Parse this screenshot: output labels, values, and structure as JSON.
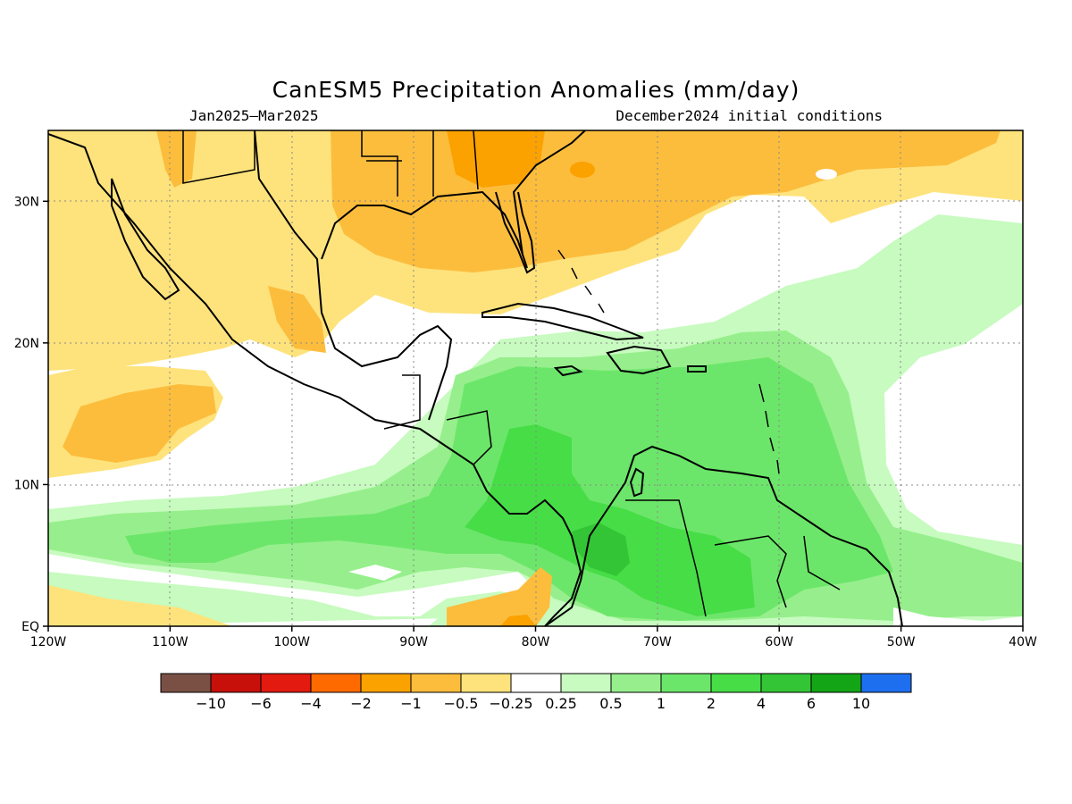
{
  "title": "CanESM5 Precipitation Anomalies (mm/day)",
  "subtitle_left": "Jan2025–Mar2025",
  "subtitle_right": "December2024 initial conditions",
  "map": {
    "lon_range": [
      -120,
      -40
    ],
    "lat_range": [
      0,
      35
    ],
    "x_ticks": [
      {
        "lon": -120,
        "label": "120W"
      },
      {
        "lon": -110,
        "label": "110W"
      },
      {
        "lon": -100,
        "label": "100W"
      },
      {
        "lon": -90,
        "label": "90W"
      },
      {
        "lon": -80,
        "label": "80W"
      },
      {
        "lon": -70,
        "label": "70W"
      },
      {
        "lon": -60,
        "label": "60W"
      },
      {
        "lon": -50,
        "label": "50W"
      },
      {
        "lon": -40,
        "label": "40W"
      }
    ],
    "y_ticks": [
      {
        "lat": 0,
        "label": "EQ"
      },
      {
        "lat": 10,
        "label": "10N"
      },
      {
        "lat": 20,
        "label": "20N"
      },
      {
        "lat": 30,
        "label": "30N"
      }
    ]
  },
  "legend": {
    "colors": [
      "#7a5045",
      "#c8100a",
      "#e21a10",
      "#ff6a00",
      "#fba100",
      "#fcbd3d",
      "#fee37c",
      "#ffffff",
      "#c7fbbf",
      "#96ef8c",
      "#6ce66a",
      "#47dd47",
      "#33c535",
      "#13a516",
      "#1e6ff0"
    ],
    "labels": [
      "−10",
      "−6",
      "−4",
      "−2",
      "−1",
      "−0.5",
      "−0.25",
      "0.25",
      "0.5",
      "1",
      "2",
      "4",
      "6",
      "10"
    ]
  }
}
